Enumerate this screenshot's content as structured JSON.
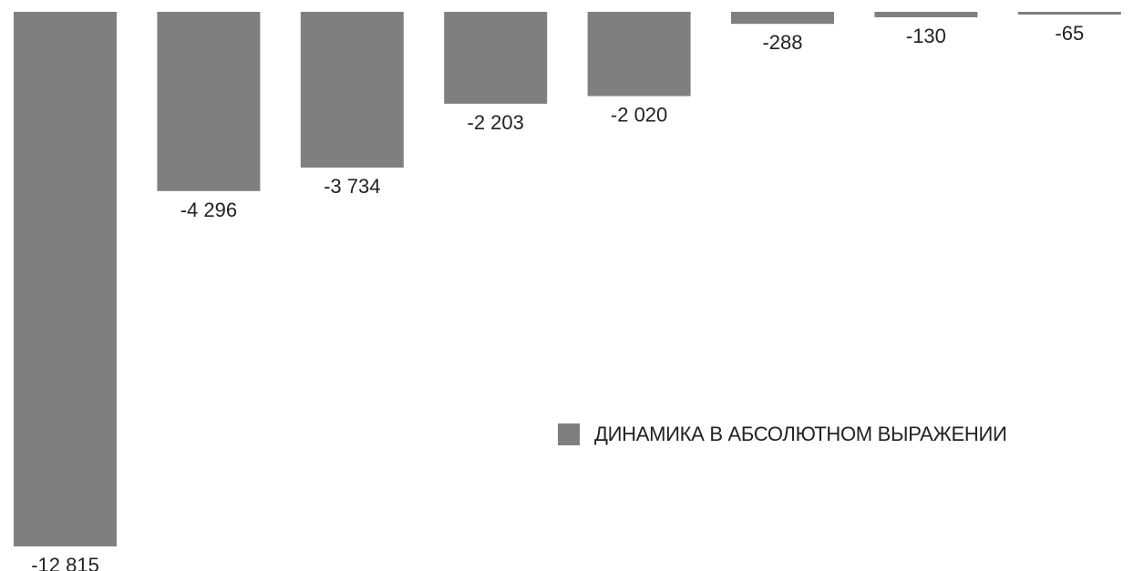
{
  "chart_data": {
    "type": "bar",
    "categories": [
      "",
      "",
      "",
      "",
      "",
      "",
      "",
      ""
    ],
    "series": [
      {
        "name": "ДИНАМИКА В АБСОЛЮТНОМ ВЫРАЖЕНИИ",
        "values": [
          -12815,
          -4296,
          -3734,
          -2203,
          -2020,
          -288,
          -130,
          -65
        ],
        "labels": [
          "-12 815",
          "-4 296",
          "-3 734",
          "-2 203",
          "-2 020",
          "-288",
          "-130",
          "-65"
        ],
        "color": "#7f7f7f"
      }
    ],
    "title": "",
    "xlabel": "",
    "ylabel": "",
    "ylim": [
      -12815,
      0
    ],
    "grid": false,
    "legend_position": "bottom-right"
  },
  "legend": {
    "label": "ДИНАМИКА В АБСОЛЮТНОМ ВЫРАЖЕНИИ",
    "swatch_color": "#7f7f7f"
  }
}
